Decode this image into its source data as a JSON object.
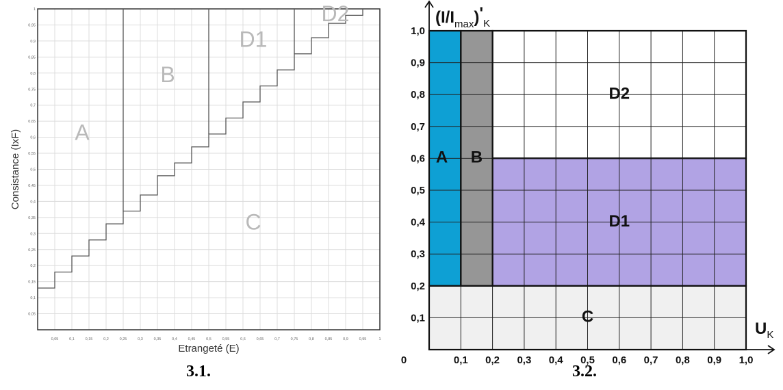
{
  "figure1": {
    "caption": "3.1.",
    "xlabel": "Etrangeté (E)",
    "ylabel": "Consistance (IxF)",
    "x_ticks": [
      "0,05",
      "0,1",
      "0,15",
      "0,2",
      "0,25",
      "0,3",
      "0,35",
      "0,4",
      "0,45",
      "0,5",
      "0,55",
      "0,6",
      "0,65",
      "0,7",
      "0,75",
      "0,8",
      "0,85",
      "0,9",
      "0,95",
      "1"
    ],
    "y_ticks": [
      "0,05",
      "0,1",
      "0,15",
      "0,2",
      "0,25",
      "0,3",
      "0,35",
      "0,4",
      "0,45",
      "0,5",
      "0,55",
      "0,6",
      "0,65",
      "0,7",
      "0,75",
      "0,8",
      "0,85",
      "0,9",
      "0,95",
      "1"
    ],
    "regions": [
      {
        "label": "A",
        "x": 0.13,
        "y": 0.61
      },
      {
        "label": "B",
        "x": 0.38,
        "y": 0.79
      },
      {
        "label": "C",
        "x": 0.63,
        "y": 0.33
      },
      {
        "label": "D1",
        "x": 0.63,
        "y": 0.9
      },
      {
        "label": "D2",
        "x": 0.87,
        "y": 0.98
      }
    ],
    "vertical_boundaries": [
      {
        "x": 0.25,
        "y_from": 0.37,
        "y_to": 1.0
      },
      {
        "x": 0.5,
        "y_from": 0.61,
        "y_to": 1.0
      },
      {
        "x": 0.75,
        "y_from": 0.86,
        "y_to": 1.0
      }
    ],
    "staircase": [
      [
        0,
        0.13
      ],
      [
        0.05,
        0.13
      ],
      [
        0.05,
        0.18
      ],
      [
        0.1,
        0.18
      ],
      [
        0.1,
        0.23
      ],
      [
        0.15,
        0.23
      ],
      [
        0.15,
        0.28
      ],
      [
        0.2,
        0.28
      ],
      [
        0.2,
        0.33
      ],
      [
        0.25,
        0.33
      ],
      [
        0.25,
        0.37
      ],
      [
        0.3,
        0.37
      ],
      [
        0.3,
        0.42
      ],
      [
        0.35,
        0.42
      ],
      [
        0.35,
        0.48
      ],
      [
        0.4,
        0.48
      ],
      [
        0.4,
        0.52
      ],
      [
        0.45,
        0.52
      ],
      [
        0.45,
        0.57
      ],
      [
        0.5,
        0.57
      ],
      [
        0.5,
        0.61
      ],
      [
        0.55,
        0.61
      ],
      [
        0.55,
        0.66
      ],
      [
        0.6,
        0.66
      ],
      [
        0.6,
        0.71
      ],
      [
        0.65,
        0.71
      ],
      [
        0.65,
        0.76
      ],
      [
        0.7,
        0.76
      ],
      [
        0.7,
        0.81
      ],
      [
        0.75,
        0.81
      ],
      [
        0.75,
        0.86
      ],
      [
        0.8,
        0.86
      ],
      [
        0.8,
        0.91
      ],
      [
        0.85,
        0.91
      ],
      [
        0.85,
        0.955
      ],
      [
        0.9,
        0.955
      ],
      [
        0.9,
        0.98
      ],
      [
        0.95,
        0.98
      ],
      [
        0.95,
        1.0
      ]
    ]
  },
  "figure2": {
    "caption": "3.2.",
    "ylabel_main": "(I/I",
    "ylabel_sub": "max",
    "ylabel_close": ")",
    "ylabel_prime": "'",
    "ylabel_subK": "K",
    "xlabel_main": "U",
    "xlabel_sub": "K",
    "origin_label": "0",
    "x_ticks": [
      "0,1",
      "0,2",
      "0,3",
      "0,4",
      "0,5",
      "0,6",
      "0,7",
      "0,8",
      "0,9",
      "1,0"
    ],
    "y_ticks": [
      "0,1",
      "0,2",
      "0,3",
      "0,4",
      "0,5",
      "0,6",
      "0,7",
      "0,8",
      "0,9",
      "1,0"
    ],
    "regions": [
      {
        "label": "A",
        "x0": 0.0,
        "x1": 0.1,
        "y0": 0.2,
        "y1": 1.0,
        "color": "#0ea0d4",
        "label_x": 0.04,
        "label_y": 0.6
      },
      {
        "label": "B",
        "x0": 0.1,
        "x1": 0.2,
        "y0": 0.2,
        "y1": 1.0,
        "color": "#969696",
        "label_x": 0.15,
        "label_y": 0.6
      },
      {
        "label": "D1",
        "x0": 0.2,
        "x1": 1.0,
        "y0": 0.2,
        "y1": 0.6,
        "color": "#b1a3e4",
        "label_x": 0.6,
        "label_y": 0.4
      },
      {
        "label": "D2",
        "x0": 0.2,
        "x1": 1.0,
        "y0": 0.6,
        "y1": 1.0,
        "color": "#ffffff",
        "label_x": 0.6,
        "label_y": 0.8
      },
      {
        "label": "C",
        "x0": 0.0,
        "x1": 1.0,
        "y0": 0.0,
        "y1": 0.2,
        "color": "#f0f0f0",
        "label_x": 0.5,
        "label_y": 0.1
      }
    ]
  }
}
